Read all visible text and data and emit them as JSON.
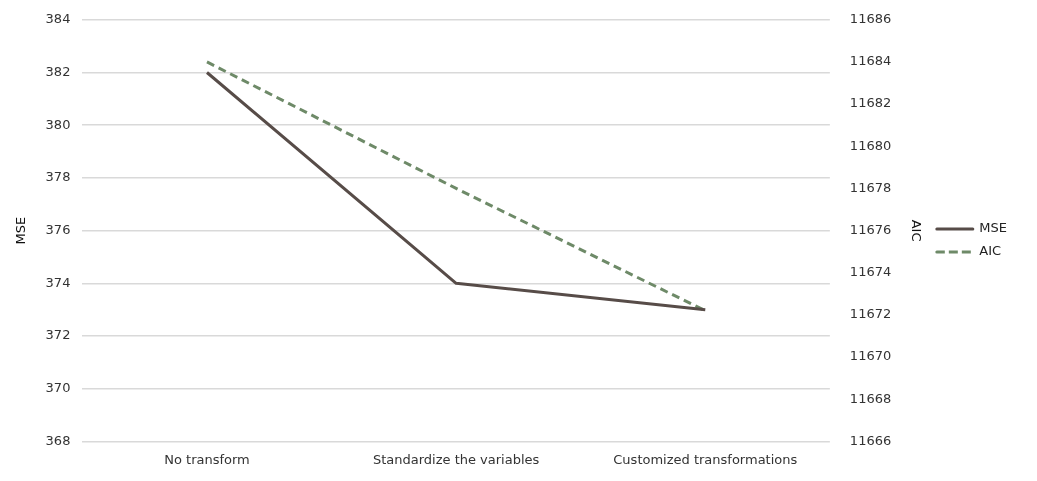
{
  "chart_data": {
    "type": "line",
    "categories": [
      "No transform",
      "Standardize the variables",
      "Customized transformations"
    ],
    "series": [
      {
        "name": "MSE",
        "color": "#574c48",
        "values": [
          382,
          374,
          373
        ]
      },
      {
        "name": "AIC",
        "color": "#6e8a68",
        "values": [
          11684,
          11678,
          11672.2
        ],
        "axis": "y2",
        "line_style": "dashed"
      }
    ],
    "ylabel": "MSE",
    "y2label": "AIC",
    "ylim": [
      368,
      384
    ],
    "yticks": [
      368,
      370,
      372,
      374,
      376,
      378,
      380,
      382,
      384
    ],
    "y2lim": [
      11666,
      11686
    ],
    "y2ticks": [
      11666,
      11668,
      11670,
      11672,
      11674,
      11676,
      11678,
      11680,
      11682,
      11684,
      11686
    ],
    "grid": "y",
    "legend": "right",
    "marker": "none",
    "line_style": "solid"
  }
}
